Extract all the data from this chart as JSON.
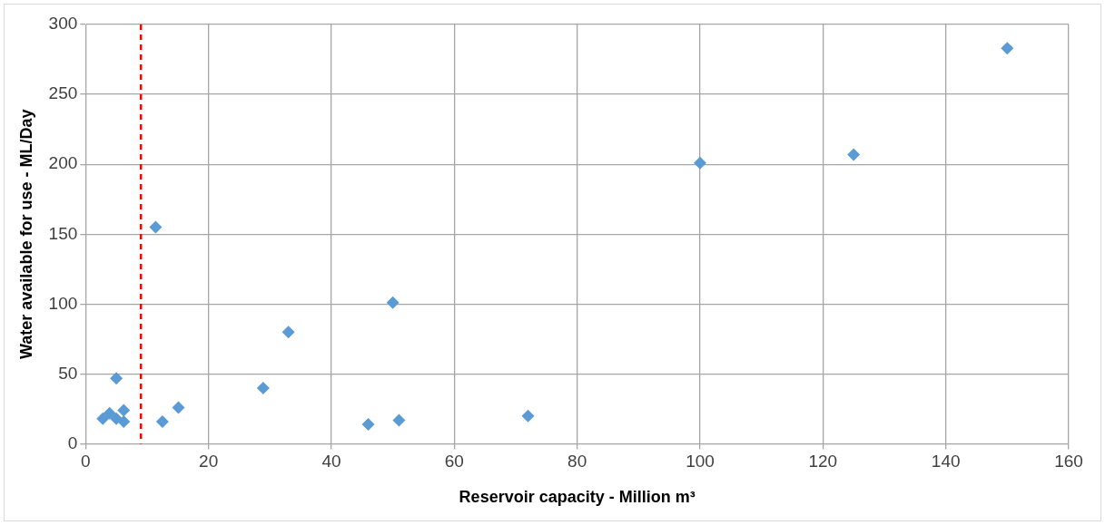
{
  "chart_data": {
    "type": "scatter",
    "xlabel": "Reservoir capacity - Million m³",
    "ylabel": "Water available for use - ML/Day",
    "x": [
      2.8,
      3.9,
      5,
      6.2,
      6.2,
      5,
      12.5,
      15.1,
      11.4,
      28.9,
      33,
      46,
      50,
      51,
      72,
      100,
      125,
      150
    ],
    "series": [
      {
        "color": "#5b9bd5",
        "values": [
          18,
          22,
          18,
          24,
          16,
          47,
          16,
          26,
          155,
          40,
          80,
          14,
          101,
          17,
          20,
          201,
          207,
          283
        ]
      }
    ],
    "xlim": [
      0,
      160
    ],
    "xticks": [
      0,
      20,
      40,
      60,
      80,
      100,
      120,
      140,
      160
    ],
    "ylim": [
      0,
      300
    ],
    "yticks": [
      0,
      50,
      100,
      150,
      200,
      250,
      300
    ],
    "grid": true,
    "legend": false,
    "marker": "diamond",
    "ref_lines": [
      {
        "axis": "x",
        "value": 9,
        "label": null,
        "color": "#ff0000",
        "line_style": "dashed"
      }
    ]
  }
}
